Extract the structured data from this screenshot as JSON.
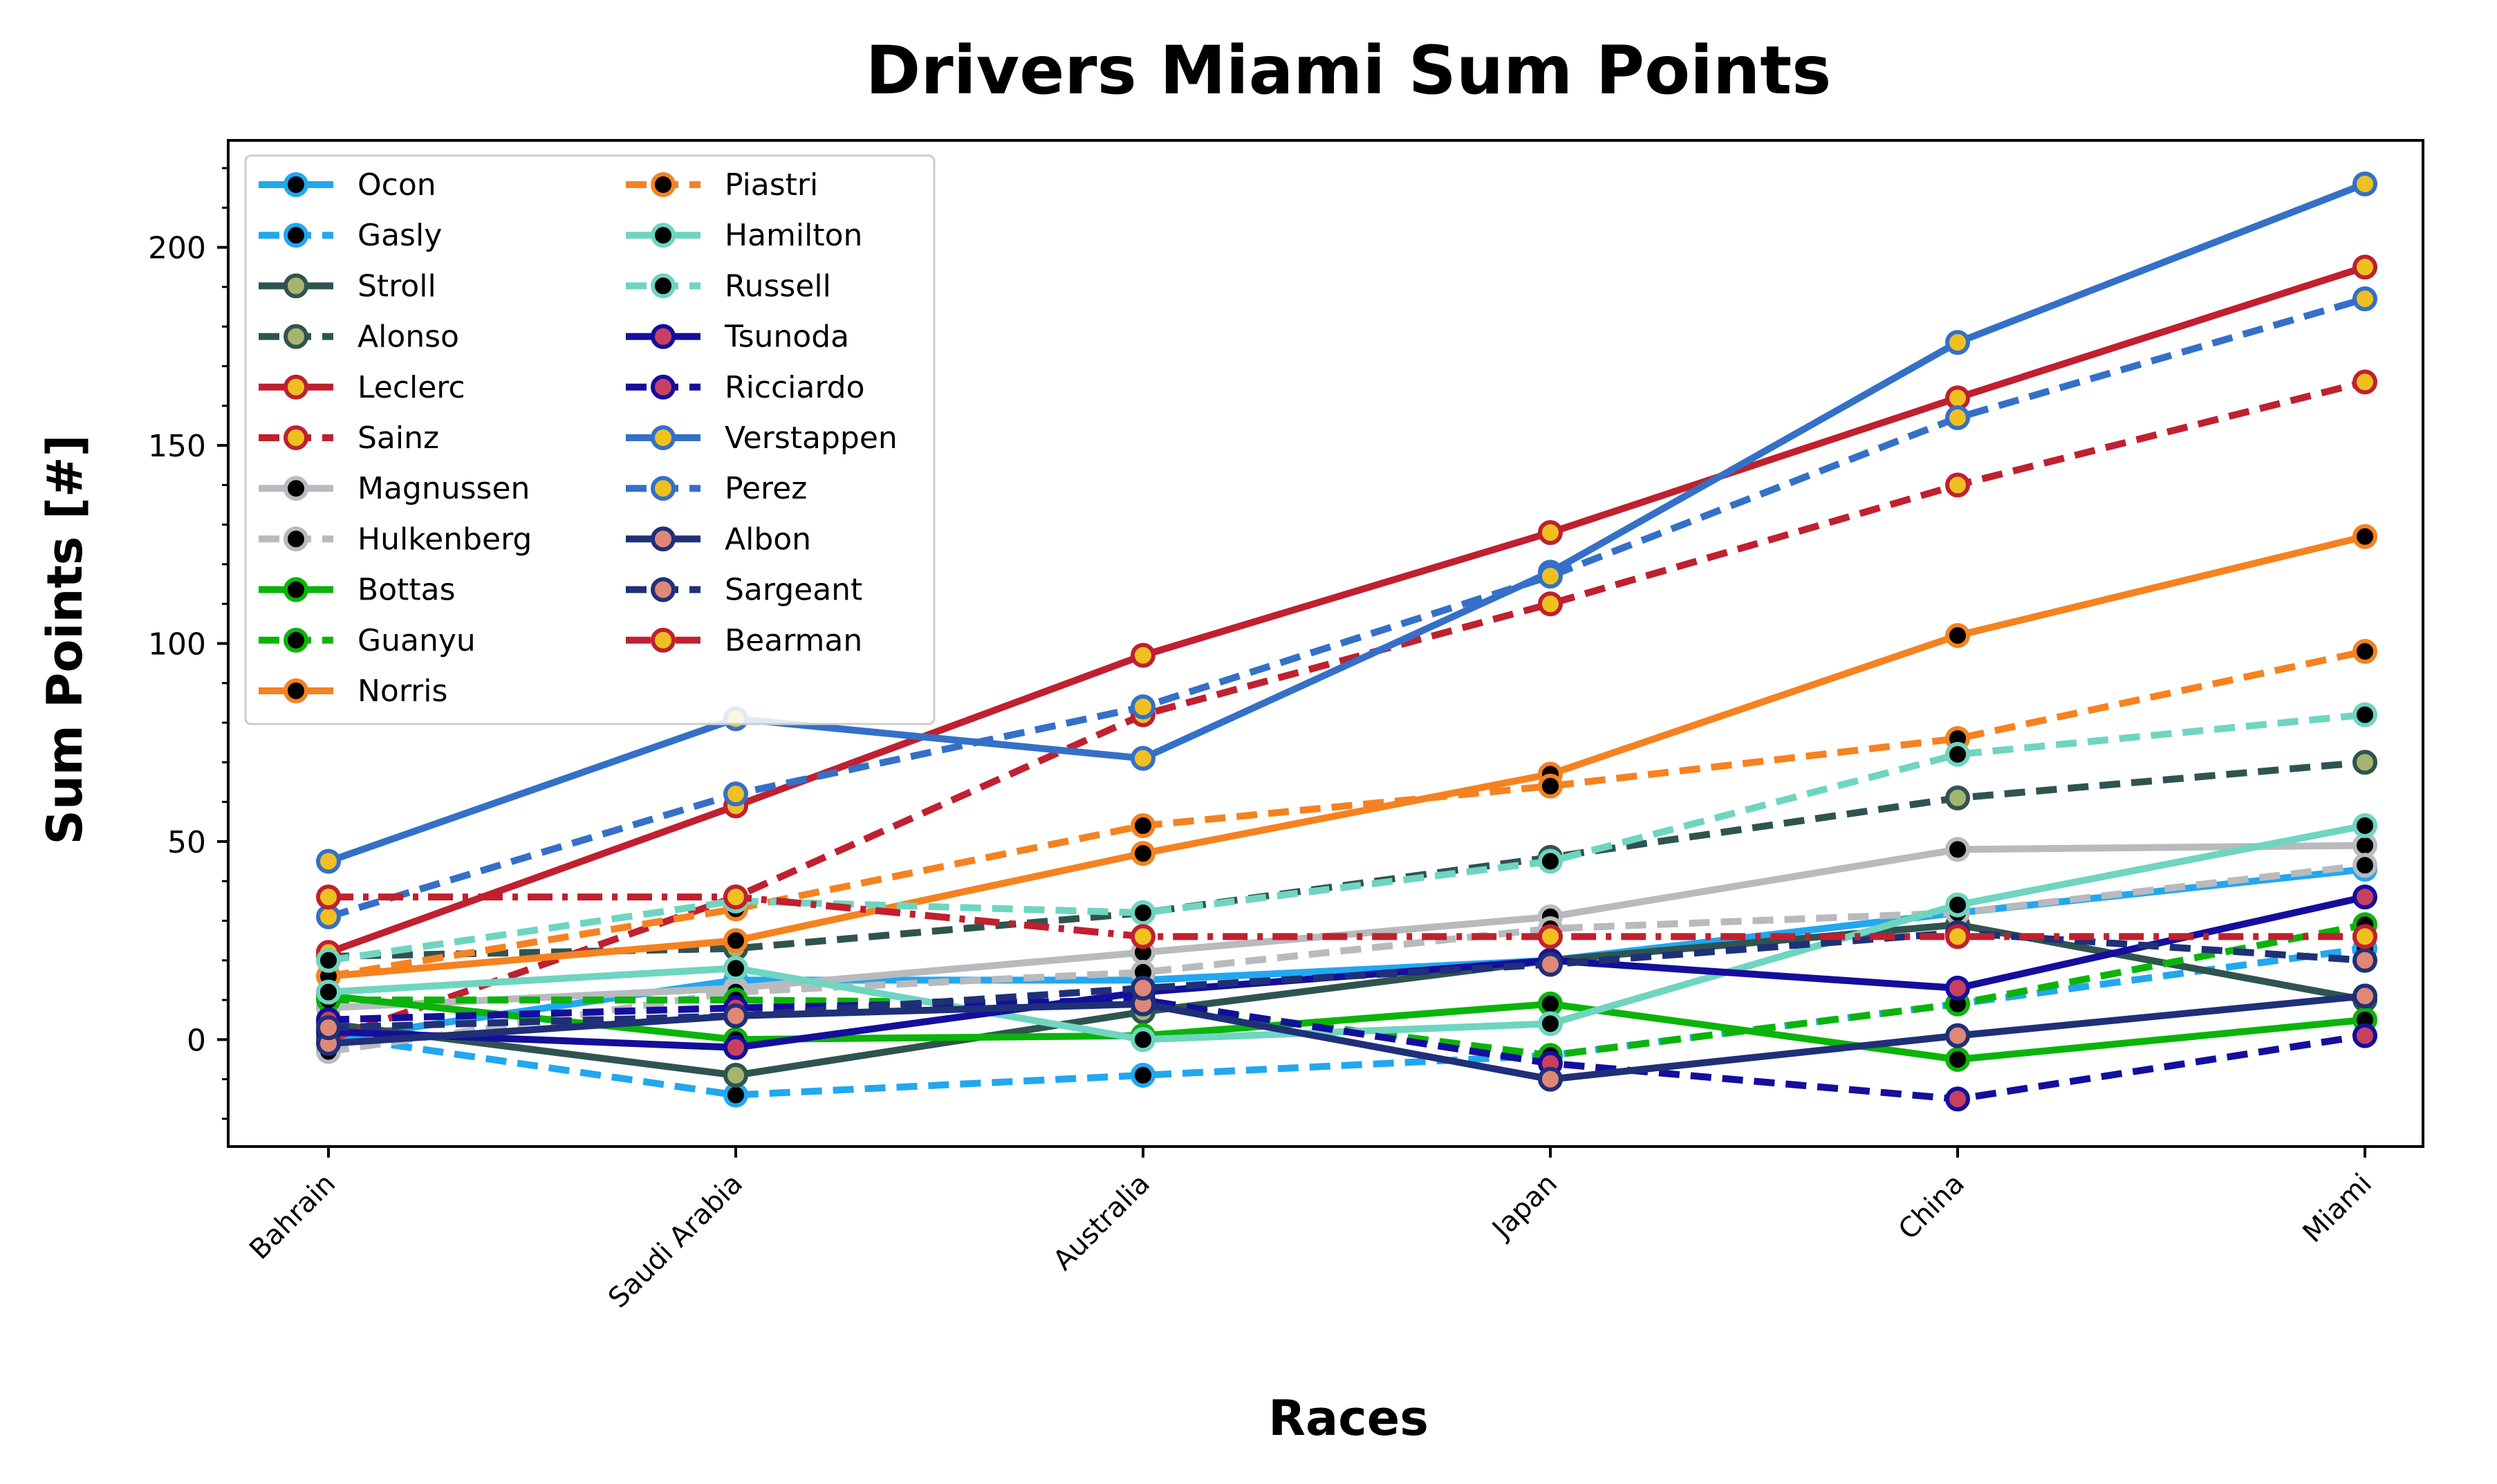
{
  "chart_data": {
    "type": "line",
    "title": "Drivers Miami Sum Points",
    "xlabel": "Races",
    "ylabel": "Sum Points [#]",
    "categories": [
      "Bahrain",
      "Saudi Arabia",
      "Australia",
      "Japan",
      "China",
      "Miami"
    ],
    "ylim": [
      -27,
      227
    ],
    "yticks": [
      0,
      50,
      100,
      150,
      200
    ],
    "grid": false,
    "legend": {
      "placement": "top-left",
      "columns": 2
    },
    "series": [
      {
        "name": "Ocon",
        "values": [
          0,
          15,
          15,
          20,
          32,
          43
        ],
        "color": "#22a7f0",
        "marker_fill": "#000000",
        "dash": "solid"
      },
      {
        "name": "Gasly",
        "values": [
          1,
          -14,
          -9,
          -4,
          9,
          23
        ],
        "color": "#22a7f0",
        "marker_fill": "#000000",
        "dash": "dashed"
      },
      {
        "name": "Stroll",
        "values": [
          4,
          -9,
          7,
          20,
          29,
          10
        ],
        "color": "#2f5450",
        "marker_fill": "#a6b56e",
        "dash": "solid"
      },
      {
        "name": "Alonso",
        "values": [
          21,
          23,
          32,
          46,
          61,
          70
        ],
        "color": "#2f5450",
        "marker_fill": "#a6b56e",
        "dash": "dashed"
      },
      {
        "name": "Leclerc",
        "values": [
          22,
          59,
          97,
          128,
          162,
          195
        ],
        "color": "#c0202f",
        "marker_fill": "#f0c020",
        "dash": "solid"
      },
      {
        "name": "Sainz",
        "values": [
          0,
          36,
          82,
          110,
          140,
          166
        ],
        "color": "#c0202f",
        "marker_fill": "#f0c020",
        "dash": "dashed"
      },
      {
        "name": "Magnussen",
        "values": [
          8,
          13,
          22,
          31,
          48,
          49
        ],
        "color": "#b8babd",
        "marker_fill": "#000000",
        "dash": "solid"
      },
      {
        "name": "Hulkenberg",
        "values": [
          -3,
          12,
          17,
          28,
          32,
          44
        ],
        "color": "#b8babd",
        "marker_fill": "#000000",
        "dash": "dashed"
      },
      {
        "name": "Bottas",
        "values": [
          11,
          0,
          1,
          9,
          -5,
          5
        ],
        "color": "#0ab40a",
        "marker_fill": "#000000",
        "dash": "solid"
      },
      {
        "name": "Guanyu",
        "values": [
          10,
          10,
          9,
          -4,
          9,
          29
        ],
        "color": "#0ab40a",
        "marker_fill": "#000000",
        "dash": "dashed"
      },
      {
        "name": "Norris",
        "values": [
          16,
          25,
          47,
          67,
          102,
          127
        ],
        "color": "#f58220",
        "marker_fill": "#000000",
        "dash": "solid"
      },
      {
        "name": "Piastri",
        "values": [
          16,
          33,
          54,
          64,
          76,
          98
        ],
        "color": "#f58220",
        "marker_fill": "#000000",
        "dash": "dashed"
      },
      {
        "name": "Hamilton",
        "values": [
          12,
          18,
          0,
          4,
          34,
          54
        ],
        "color": "#6fd5c0",
        "marker_fill": "#000000",
        "dash": "solid"
      },
      {
        "name": "Russell",
        "values": [
          20,
          35,
          32,
          45,
          72,
          82
        ],
        "color": "#6fd5c0",
        "marker_fill": "#000000",
        "dash": "dashed"
      },
      {
        "name": "Tsunoda",
        "values": [
          2,
          -2,
          12,
          20,
          13,
          36
        ],
        "color": "#140e9c",
        "marker_fill": "#c84060",
        "dash": "solid"
      },
      {
        "name": "Ricciardo",
        "values": [
          5,
          8,
          10,
          -6,
          -15,
          1
        ],
        "color": "#140e9c",
        "marker_fill": "#c84060",
        "dash": "dashed"
      },
      {
        "name": "Verstappen",
        "values": [
          45,
          81,
          71,
          118,
          176,
          216
        ],
        "color": "#3470c8",
        "marker_fill": "#f0c020",
        "dash": "solid"
      },
      {
        "name": "Perez",
        "values": [
          31,
          62,
          84,
          117,
          157,
          187
        ],
        "color": "#3470c8",
        "marker_fill": "#f0c020",
        "dash": "dashed"
      },
      {
        "name": "Albon",
        "values": [
          -1,
          6,
          9,
          -10,
          1,
          11
        ],
        "color": "#1f3078",
        "marker_fill": "#e08878",
        "dash": "solid"
      },
      {
        "name": "Sargeant",
        "values": [
          3,
          6,
          13,
          19,
          27,
          20
        ],
        "color": "#1f3078",
        "marker_fill": "#e08878",
        "dash": "dashed"
      },
      {
        "name": "Bearman",
        "values": [
          36,
          36,
          26,
          26,
          26,
          26
        ],
        "color": "#c0202f",
        "marker_fill": "#f0c020",
        "dash": "dashdot"
      }
    ]
  }
}
